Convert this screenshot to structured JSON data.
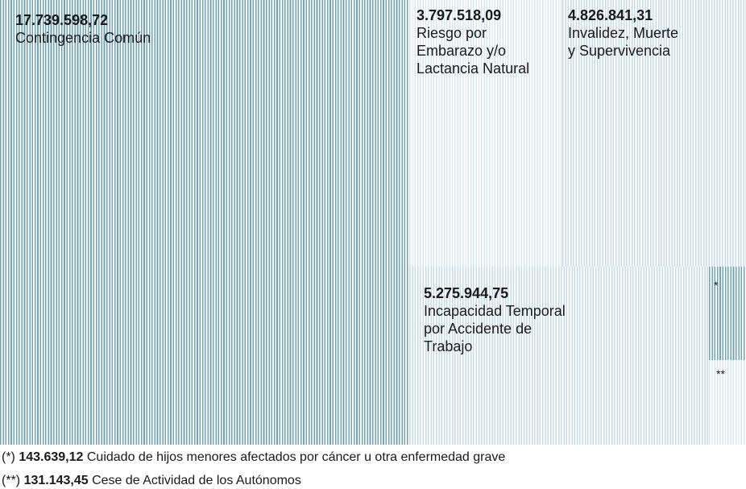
{
  "chart_data": {
    "type": "treemap",
    "items": [
      {
        "value": 17739598.72,
        "value_label": "17.739.598,72",
        "name_lines": [
          "Contingencia Común"
        ],
        "color": "#6fa3b6"
      },
      {
        "value": 3797518.09,
        "value_label": "3.797.518,09",
        "name_lines": [
          "Riesgo por",
          "Embarazo y/o",
          "Lactancia Natural"
        ],
        "color": "#d6e7ed"
      },
      {
        "value": 4826841.31,
        "value_label": "4.826.841,31",
        "name_lines": [
          "Invalidez, Muerte",
          "y Supervivencia"
        ],
        "color": "#c7dde5"
      },
      {
        "value": 5275944.75,
        "value_label": "5.275.944,75",
        "name_lines": [
          "Incapacidad Temporal",
          "por Accidente de",
          "Trabajo"
        ],
        "color": "#c7dde5"
      },
      {
        "value": 143639.12,
        "value_label": "143.639,12",
        "marker": "*",
        "name": "Cuidado de hijos menores afectados por cáncer u otra enfermedad grave",
        "color": "#6fa3b6"
      },
      {
        "value": 131143.45,
        "value_label": "131.143,45",
        "marker": "**",
        "name": "Cese de Actividad de los Autónomos",
        "color": "#d6e7ed"
      }
    ]
  },
  "footnotes": [
    {
      "marker": "(*)",
      "value": "143.639,12",
      "text": "Cuidado de hijos menores afectados por cáncer u otra enfermedad grave"
    },
    {
      "marker": "(**)",
      "value": "131.143,45",
      "text": "Cese de Actividad de los Autónomos"
    }
  ]
}
